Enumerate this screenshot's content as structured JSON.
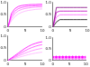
{
  "chart_data": [
    {
      "type": "line",
      "x": [
        0,
        1,
        2,
        3,
        4,
        5,
        6,
        7,
        8,
        9,
        10
      ],
      "xlim": [
        0,
        10
      ],
      "xticks": [
        0,
        5,
        10
      ],
      "ylim": [
        0,
        1
      ],
      "yticks": [
        0,
        0.5,
        1
      ],
      "grid": false,
      "series": [
        {
          "color": "#ff00ff",
          "values": [
            0,
            0.55,
            0.75,
            0.84,
            0.88,
            0.9,
            0.91,
            0.92,
            0.92,
            0.93,
            0.93
          ]
        },
        {
          "color": "#ff40ff",
          "values": [
            0,
            0.45,
            0.65,
            0.75,
            0.8,
            0.83,
            0.85,
            0.86,
            0.87,
            0.87,
            0.88
          ]
        },
        {
          "color": "#ff80ff",
          "values": [
            0,
            0.35,
            0.55,
            0.66,
            0.72,
            0.76,
            0.78,
            0.8,
            0.81,
            0.82,
            0.82
          ]
        },
        {
          "color": "#ffb0ff",
          "values": [
            0,
            0.25,
            0.42,
            0.53,
            0.6,
            0.65,
            0.68,
            0.7,
            0.72,
            0.73,
            0.74
          ]
        }
      ]
    },
    {
      "type": "line",
      "x": [
        0,
        1,
        2,
        3,
        4,
        5,
        6,
        7,
        8,
        9,
        10
      ],
      "xlim": [
        0,
        10
      ],
      "xticks": [
        0,
        5,
        10
      ],
      "ylim": [
        0,
        1
      ],
      "yticks": [
        0,
        0.5,
        1
      ],
      "grid": false,
      "series": [
        {
          "color": "#800080",
          "values": [
            0,
            0.8,
            0.8,
            0.8,
            0.8,
            0.8,
            0.8,
            0.8,
            0.8,
            0.8,
            0.8
          ]
        },
        {
          "color": "#c000c0",
          "values": [
            0,
            0.6,
            0.65,
            0.65,
            0.65,
            0.65,
            0.65,
            0.65,
            0.65,
            0.65,
            0.65
          ]
        },
        {
          "color": "#ff60ff",
          "values": [
            0,
            0.4,
            0.5,
            0.5,
            0.5,
            0.5,
            0.5,
            0.5,
            0.5,
            0.5,
            0.5
          ]
        },
        {
          "color": "#000000",
          "values": [
            0,
            0.2,
            0.3,
            0.3,
            0.3,
            0.3,
            0.3,
            0.3,
            0.3,
            0.3,
            0.3
          ]
        }
      ]
    },
    {
      "type": "line",
      "x": [
        0,
        1,
        2,
        3,
        4,
        5,
        6,
        7,
        8,
        9,
        10
      ],
      "xlim": [
        0,
        10
      ],
      "xticks": [
        0,
        5,
        10
      ],
      "ylim": [
        0,
        1
      ],
      "yticks": [
        0,
        0.5,
        1
      ],
      "grid": false,
      "series": [
        {
          "color": "#ff00ff",
          "values": [
            0,
            0.1,
            0.2,
            0.3,
            0.4,
            0.5,
            0.58,
            0.65,
            0.7,
            0.74,
            0.77
          ]
        },
        {
          "color": "#ff40ff",
          "values": [
            0,
            0.08,
            0.16,
            0.24,
            0.32,
            0.4,
            0.47,
            0.53,
            0.58,
            0.62,
            0.65
          ]
        },
        {
          "color": "#ff80ff",
          "values": [
            0,
            0.06,
            0.12,
            0.18,
            0.24,
            0.3,
            0.35,
            0.4,
            0.44,
            0.47,
            0.5
          ]
        },
        {
          "color": "#ffb0ff",
          "values": [
            0,
            0.04,
            0.08,
            0.12,
            0.16,
            0.2,
            0.24,
            0.27,
            0.3,
            0.32,
            0.34
          ]
        }
      ]
    },
    {
      "type": "line",
      "x": [
        0,
        1,
        2,
        3,
        4,
        5,
        6,
        7,
        8,
        9,
        10
      ],
      "xlim": [
        0,
        10
      ],
      "xticks": [
        0,
        5,
        10
      ],
      "ylim": [
        0,
        1
      ],
      "yticks": [
        0,
        0.5,
        1
      ],
      "grid": false,
      "series": [
        {
          "color": "#ff00ff",
          "marker": "circle",
          "values": [
            0.15,
            0.15,
            0.15,
            0.15,
            0.15,
            0.15,
            0.15,
            0.15,
            0.15,
            0.15,
            0.15
          ]
        },
        {
          "color": "#ff80ff",
          "marker": "circle",
          "values": [
            0.08,
            0.08,
            0.08,
            0.08,
            0.08,
            0.08,
            0.08,
            0.08,
            0.08,
            0.08,
            0.08
          ]
        }
      ]
    }
  ]
}
